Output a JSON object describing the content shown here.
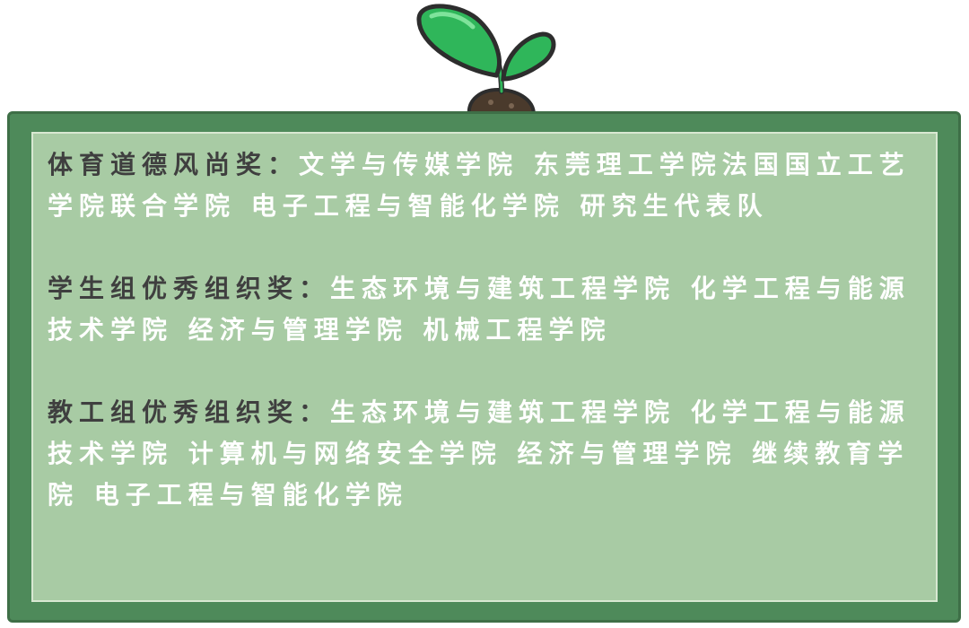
{
  "awards": [
    {
      "title": "体育道德风尚奖：",
      "winners": "文学与传媒学院 东莞理工学院法国国立工艺学院联合学院 电子工程与智能化学院 研究生代表队"
    },
    {
      "title": "学生组优秀组织奖：",
      "winners": "生态环境与建筑工程学院 化学工程与能源技术学院 经济与管理学院 机械工程学院"
    },
    {
      "title": "教工组优秀组织奖：",
      "winners": "生态环境与建筑工程学院 化学工程与能源技术学院 计算机与网络安全学院 经济与管理学院 继续教育学院 电子工程与智能化学院"
    }
  ],
  "colors": {
    "frame": "#4e8a5a",
    "panel": "#a8cba4",
    "title_text": "#3f3f3f",
    "winner_text": "#ffffff",
    "leaf": "#2fb65a"
  },
  "decorations": {
    "top": "sprout-icon"
  }
}
